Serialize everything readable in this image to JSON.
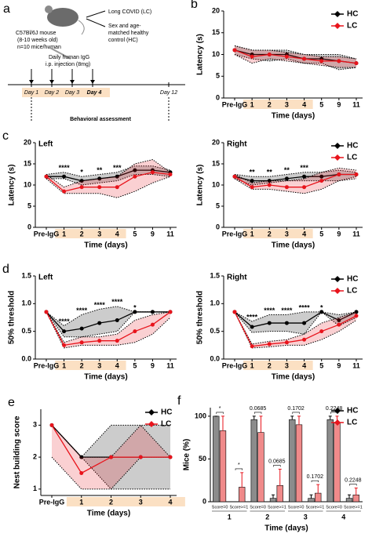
{
  "schematic": {
    "label": "a",
    "mouse_lines": [
      "C57Bl/6J mouse",
      "(8-10 weeks old)",
      "n=10 mice/human"
    ],
    "lc": "Long COVID (LC)",
    "hc_lines": [
      "Sex and age-",
      "matched healthy",
      "control (HC)"
    ],
    "injection_lines": [
      "Daily human IgG",
      "i.p. injection (8mg)"
    ],
    "days": [
      "Day 1",
      "Day 2",
      "Day 3",
      "Day 4",
      "Day 12"
    ],
    "assessment": "Behavioral assessment"
  },
  "chart_data": [
    {
      "type": "line",
      "label": "b",
      "y_label": "Latency (s)",
      "x_label": "Time (days)",
      "categories": [
        "Pre-IgG",
        "1",
        "2",
        "3",
        "4",
        "5",
        "9",
        "11"
      ],
      "ylim": [
        0,
        20
      ],
      "yticks": [
        0,
        5,
        10,
        15,
        20
      ],
      "legend": "upper right",
      "highlight_color": "#fbe0c3",
      "highlight_range": [
        1,
        4
      ],
      "series": [
        {
          "name": "HC",
          "color": "#000000",
          "values": [
            11,
            10,
            10,
            10,
            9,
            9,
            8.5,
            8
          ],
          "lower": [
            10,
            9,
            8.5,
            9,
            8,
            8,
            6.5,
            7
          ],
          "upper": [
            12,
            11,
            11,
            11,
            10,
            10,
            10,
            9
          ]
        },
        {
          "name": "LC",
          "color": "#e8141c",
          "values": [
            11,
            9.5,
            10,
            9.5,
            9,
            8.5,
            8.5,
            8
          ],
          "lower": [
            10,
            8,
            9,
            8.5,
            8,
            7.5,
            7,
            7
          ],
          "upper": [
            12,
            11,
            11,
            10.5,
            10,
            9.5,
            9.5,
            9
          ]
        }
      ]
    },
    {
      "type": "line",
      "label": "c",
      "subtitle": "Left",
      "y_label": "Latency (s)",
      "x_label": "Time (days)",
      "categories": [
        "Pre-IgG",
        "1",
        "2",
        "3",
        "4",
        "5",
        "9",
        "11"
      ],
      "ylim": [
        0,
        20
      ],
      "yticks": [
        0,
        5,
        10,
        15,
        20
      ],
      "highlight_color": "#fbe0c3",
      "highlight_range": [
        1,
        4
      ],
      "series": [
        {
          "name": "HC",
          "color": "#000000",
          "values": [
            12,
            12,
            11,
            11.5,
            12,
            13.5,
            13.5,
            13
          ],
          "lower": [
            11.5,
            11.5,
            10,
            10.5,
            11,
            12.5,
            12.5,
            12
          ],
          "upper": [
            12.5,
            13,
            12,
            12.5,
            13,
            14.5,
            14.5,
            13.5
          ]
        },
        {
          "name": "LC",
          "color": "#e8141c",
          "values": [
            12,
            8.5,
            9.5,
            9.5,
            9.5,
            12,
            13,
            12.5
          ],
          "lower": [
            11.5,
            8,
            8,
            8,
            7,
            8.5,
            10.5,
            12
          ],
          "upper": [
            12.5,
            9.5,
            11,
            11.5,
            12,
            15,
            16,
            13
          ]
        }
      ],
      "annotations": [
        {
          "at": 1,
          "text": "****"
        },
        {
          "at": 2,
          "text": "*"
        },
        {
          "at": 3,
          "text": "**"
        },
        {
          "at": 4,
          "text": "***"
        }
      ]
    },
    {
      "type": "line",
      "subtitle": "Right",
      "y_label": "Latency (s)",
      "x_label": "Time (days)",
      "categories": [
        "Pre-IgG",
        "1",
        "2",
        "3",
        "4",
        "5",
        "9",
        "11"
      ],
      "ylim": [
        0,
        20
      ],
      "yticks": [
        0,
        5,
        10,
        15,
        20
      ],
      "legend": "upper right",
      "highlight_color": "#fbe0c3",
      "highlight_range": [
        1,
        4
      ],
      "series": [
        {
          "name": "HC",
          "color": "#000000",
          "values": [
            12,
            11,
            11,
            11.5,
            12,
            12,
            12.5,
            12.5
          ],
          "lower": [
            11.5,
            10,
            10.5,
            11,
            11,
            11,
            11,
            12
          ],
          "upper": [
            12.5,
            12,
            12,
            12.5,
            13,
            13,
            13.5,
            13
          ]
        },
        {
          "name": "LC",
          "color": "#e8141c",
          "values": [
            12,
            9.5,
            10,
            9.5,
            9.5,
            11,
            12.5,
            12.5
          ],
          "lower": [
            11.5,
            9,
            9,
            8.5,
            8,
            9,
            11,
            11.5
          ],
          "upper": [
            12.5,
            10.5,
            11,
            11,
            11.5,
            13,
            14,
            13.5
          ]
        }
      ],
      "annotations": [
        {
          "at": 1,
          "text": "**"
        },
        {
          "at": 2,
          "text": "**"
        },
        {
          "at": 3,
          "text": "**"
        },
        {
          "at": 4,
          "text": "***"
        }
      ]
    },
    {
      "type": "line",
      "label": "d",
      "subtitle": "Left",
      "y_label": "50% threshold",
      "x_label": "Time (days)",
      "categories": [
        "Pre-IgG",
        "1",
        "2",
        "3",
        "4",
        "5",
        "9",
        "11"
      ],
      "ylim": [
        0,
        1.5
      ],
      "yticks": [
        {
          "value": 0,
          "label": "0.0"
        },
        0.5,
        {
          "value": 1,
          "label": "1.0"
        },
        1.5
      ],
      "highlight_color": "#fbe0c3",
      "highlight_range": [
        1,
        4
      ],
      "series": [
        {
          "name": "HC",
          "color": "#000000",
          "values": [
            0.85,
            0.5,
            0.55,
            0.65,
            0.7,
            0.85,
            0.85,
            0.85
          ],
          "lower": [
            0.85,
            0.4,
            0.4,
            0.45,
            0.5,
            0.85,
            0.85,
            0.85
          ],
          "upper": [
            0.85,
            0.6,
            0.8,
            0.9,
            0.95,
            0.85,
            0.85,
            0.85
          ]
        },
        {
          "name": "LC",
          "color": "#e8141c",
          "values": [
            0.85,
            0.25,
            0.3,
            0.33,
            0.33,
            0.5,
            0.62,
            0.85
          ],
          "lower": [
            0.85,
            0.2,
            0.25,
            0.25,
            0.25,
            0.3,
            0.45,
            0.75
          ],
          "upper": [
            0.85,
            0.3,
            0.4,
            0.4,
            0.45,
            0.7,
            0.8,
            0.85
          ]
        }
      ],
      "annotations": [
        {
          "at": 1,
          "text": "****"
        },
        {
          "at": 2,
          "text": "****"
        },
        {
          "at": 3,
          "text": "****"
        },
        {
          "at": 4,
          "text": "****"
        },
        {
          "at": 5,
          "text": "*"
        }
      ]
    },
    {
      "type": "line",
      "subtitle": "Right",
      "y_label": "50% threshold",
      "x_label": "Time (days)",
      "categories": [
        "Pre-IgG",
        "1",
        "2",
        "3",
        "4",
        "5",
        "9",
        "11"
      ],
      "ylim": [
        0,
        1.5
      ],
      "yticks": [
        {
          "value": 0,
          "label": "0.0"
        },
        0.5,
        {
          "value": 1,
          "label": "1.0"
        },
        1.5
      ],
      "legend": "upper right",
      "highlight_color": "#fbe0c3",
      "highlight_range": [
        1,
        4
      ],
      "series": [
        {
          "name": "HC",
          "color": "#000000",
          "values": [
            0.85,
            0.58,
            0.65,
            0.65,
            0.65,
            0.85,
            0.7,
            0.85
          ],
          "lower": [
            0.85,
            0.48,
            0.5,
            0.5,
            0.45,
            0.85,
            0.6,
            0.75
          ],
          "upper": [
            0.85,
            0.68,
            0.8,
            0.8,
            0.85,
            0.85,
            0.8,
            0.85
          ]
        },
        {
          "name": "LC",
          "color": "#e8141c",
          "values": [
            0.85,
            0.23,
            0.27,
            0.3,
            0.35,
            0.5,
            0.62,
            0.78
          ],
          "lower": [
            0.85,
            0.2,
            0.22,
            0.25,
            0.25,
            0.35,
            0.5,
            0.7
          ],
          "upper": [
            0.85,
            0.27,
            0.32,
            0.35,
            0.45,
            0.65,
            0.75,
            0.85
          ]
        }
      ],
      "annotations": [
        {
          "at": 1,
          "text": "****"
        },
        {
          "at": 2,
          "text": "****"
        },
        {
          "at": 3,
          "text": "****"
        },
        {
          "at": 4,
          "text": "****"
        },
        {
          "at": 5,
          "text": "*"
        }
      ]
    },
    {
      "type": "line",
      "label": "e",
      "y_label": "Nest building score",
      "x_label": "Time (days)",
      "categories": [
        "Pre-IgG",
        "1",
        "2",
        "3",
        "4"
      ],
      "ylim": [
        0.8,
        3.5
      ],
      "yticks": [
        1,
        2,
        3
      ],
      "legend": "upper right",
      "highlight_color": "#fbe0c3",
      "highlight_range": [
        1,
        4
      ],
      "series": [
        {
          "name": "HC",
          "color": "#000000",
          "values": [
            3,
            2,
            2,
            2,
            2
          ],
          "lower": [
            3,
            2,
            1,
            1,
            1
          ],
          "upper": [
            3,
            2,
            3,
            3,
            3
          ]
        },
        {
          "name": "LC",
          "color": "#e8141c",
          "values": [
            3,
            1.5,
            2,
            2,
            2
          ],
          "lower": [
            2,
            1,
            1,
            2,
            2
          ],
          "upper": [
            3,
            2,
            2,
            3,
            2
          ]
        }
      ]
    },
    {
      "type": "bar",
      "label": "f",
      "y_label": "Mice (%)",
      "x_label": "Time (days)",
      "categories": [
        "Score=0",
        "Score>=1",
        "Score=0",
        "Score>=1",
        "Score=0",
        "Score>=1",
        "Score=0",
        "Score>=1"
      ],
      "groups": [
        "1",
        "2",
        "3",
        "4"
      ],
      "ylim": [
        0,
        110
      ],
      "yticks": [
        0,
        50,
        100
      ],
      "legend": "upper right",
      "series": [
        {
          "name": "HC",
          "color": "#000000",
          "fill": "#8c8c8c",
          "values": [
            100,
            0,
            96,
            4,
            96,
            4,
            96,
            4
          ],
          "errors": [
            0,
            0,
            4,
            4,
            4,
            4,
            4,
            4
          ]
        },
        {
          "name": "LC",
          "color": "#e8141c",
          "fill": "#f08a8a",
          "values": [
            83,
            17,
            81,
            19,
            90,
            10,
            92,
            8
          ],
          "errors": [
            17,
            17,
            19,
            19,
            10,
            10,
            8,
            8
          ]
        }
      ],
      "p_values": [
        "*",
        "*",
        "0.0685",
        "0.0685",
        "0.1702",
        "0.1702",
        "0.2248",
        "0.2248"
      ]
    }
  ]
}
